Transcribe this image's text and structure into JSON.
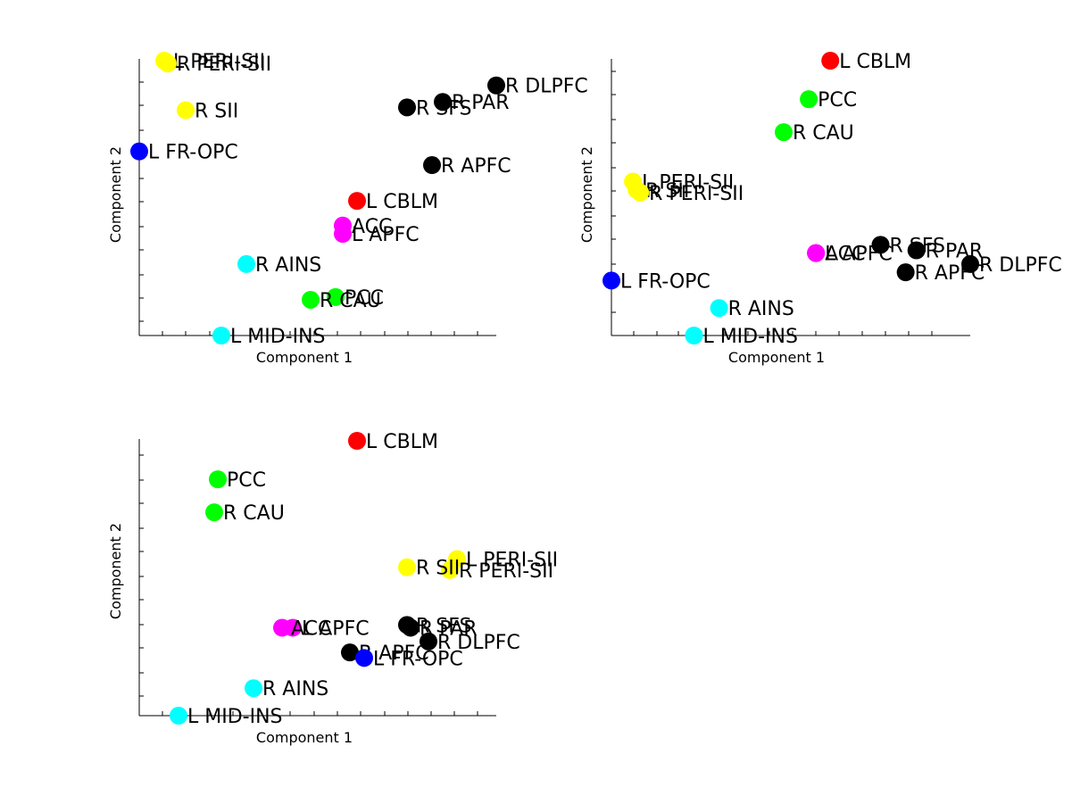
{
  "chart_data": [
    {
      "type": "scatter",
      "xlabel": "Component 1",
      "ylabel": "Component 2",
      "xlim": [
        0,
        1
      ],
      "ylim": [
        0,
        1
      ],
      "points": [
        {
          "label": "L PERI-SII",
          "x": 0.07,
          "y": 1.0,
          "color": "#ffff00"
        },
        {
          "label": "R PERI-SII",
          "x": 0.08,
          "y": 0.99,
          "color": "#ffff00"
        },
        {
          "label": "R SII",
          "x": 0.13,
          "y": 0.82,
          "color": "#ffff00"
        },
        {
          "label": "L FR-OPC",
          "x": 0.0,
          "y": 0.67,
          "color": "#0000ff"
        },
        {
          "label": "R DLPFC",
          "x": 1.0,
          "y": 0.91,
          "color": "#000000"
        },
        {
          "label": "R PAR",
          "x": 0.85,
          "y": 0.85,
          "color": "#000000"
        },
        {
          "label": "R SFS",
          "x": 0.75,
          "y": 0.83,
          "color": "#000000"
        },
        {
          "label": "R APFC",
          "x": 0.82,
          "y": 0.62,
          "color": "#000000"
        },
        {
          "label": "L CBLM",
          "x": 0.61,
          "y": 0.49,
          "color": "#ff0000"
        },
        {
          "label": "ACC",
          "x": 0.57,
          "y": 0.4,
          "color": "#ff00ff"
        },
        {
          "label": "L APFC",
          "x": 0.57,
          "y": 0.37,
          "color": "#ff00ff"
        },
        {
          "label": "R AINS",
          "x": 0.3,
          "y": 0.26,
          "color": "#00ffff"
        },
        {
          "label": "PCC",
          "x": 0.55,
          "y": 0.14,
          "color": "#00ff00"
        },
        {
          "label": "R CAU",
          "x": 0.48,
          "y": 0.13,
          "color": "#00ff00"
        },
        {
          "label": "L MID-INS",
          "x": 0.23,
          "y": 0.0,
          "color": "#00ffff"
        }
      ]
    },
    {
      "type": "scatter",
      "xlabel": "Component 1",
      "ylabel": "Component 2",
      "xlim": [
        0,
        1
      ],
      "ylim": [
        0,
        1
      ],
      "points": [
        {
          "label": "L CBLM",
          "x": 0.61,
          "y": 1.0,
          "color": "#ff0000"
        },
        {
          "label": "PCC",
          "x": 0.55,
          "y": 0.86,
          "color": "#00ff00"
        },
        {
          "label": "R CAU",
          "x": 0.48,
          "y": 0.74,
          "color": "#00ff00"
        },
        {
          "label": "L PERI-SII",
          "x": 0.06,
          "y": 0.56,
          "color": "#ffff00"
        },
        {
          "label": "R SII",
          "x": 0.07,
          "y": 0.53,
          "color": "#ffff00"
        },
        {
          "label": "R PERI-SII",
          "x": 0.08,
          "y": 0.52,
          "color": "#ffff00"
        },
        {
          "label": "ACC",
          "x": 0.57,
          "y": 0.3,
          "color": "#ff00ff"
        },
        {
          "label": "L APFC",
          "x": 0.57,
          "y": 0.3,
          "color": "#ff00ff"
        },
        {
          "label": "R SFS",
          "x": 0.75,
          "y": 0.33,
          "color": "#000000"
        },
        {
          "label": "R PAR",
          "x": 0.85,
          "y": 0.31,
          "color": "#000000"
        },
        {
          "label": "R DLPFC",
          "x": 1.0,
          "y": 0.26,
          "color": "#000000"
        },
        {
          "label": "R APFC",
          "x": 0.82,
          "y": 0.23,
          "color": "#000000"
        },
        {
          "label": "L FR-OPC",
          "x": 0.0,
          "y": 0.2,
          "color": "#0000ff"
        },
        {
          "label": "R AINS",
          "x": 0.3,
          "y": 0.1,
          "color": "#00ffff"
        },
        {
          "label": "L MID-INS",
          "x": 0.23,
          "y": 0.0,
          "color": "#00ffff"
        }
      ]
    },
    {
      "type": "scatter",
      "xlabel": "Component 1",
      "ylabel": "Component 2",
      "xlim": [
        0,
        1
      ],
      "ylim": [
        0,
        1
      ],
      "points": [
        {
          "label": "L CBLM",
          "x": 0.61,
          "y": 1.0,
          "color": "#ff0000"
        },
        {
          "label": "PCC",
          "x": 0.22,
          "y": 0.86,
          "color": "#00ff00"
        },
        {
          "label": "R CAU",
          "x": 0.21,
          "y": 0.74,
          "color": "#00ff00"
        },
        {
          "label": "L PERI-SII",
          "x": 0.89,
          "y": 0.57,
          "color": "#ffff00"
        },
        {
          "label": "R PERI-SII",
          "x": 0.87,
          "y": 0.53,
          "color": "#ffff00"
        },
        {
          "label": "R SII",
          "x": 0.75,
          "y": 0.54,
          "color": "#ffff00"
        },
        {
          "label": "R SFS",
          "x": 0.75,
          "y": 0.33,
          "color": "#000000"
        },
        {
          "label": "R PAR",
          "x": 0.76,
          "y": 0.32,
          "color": "#000000"
        },
        {
          "label": "L APFC",
          "x": 0.43,
          "y": 0.32,
          "color": "#ff00ff"
        },
        {
          "label": "ACC",
          "x": 0.4,
          "y": 0.32,
          "color": "#ff00ff"
        },
        {
          "label": "R DLPFC",
          "x": 0.81,
          "y": 0.27,
          "color": "#000000"
        },
        {
          "label": "R APFC",
          "x": 0.59,
          "y": 0.23,
          "color": "#000000"
        },
        {
          "label": "L FR-OPC",
          "x": 0.63,
          "y": 0.21,
          "color": "#0000ff"
        },
        {
          "label": "R AINS",
          "x": 0.32,
          "y": 0.1,
          "color": "#00ffff"
        },
        {
          "label": "L MID-INS",
          "x": 0.11,
          "y": 0.0,
          "color": "#00ffff"
        }
      ]
    }
  ]
}
